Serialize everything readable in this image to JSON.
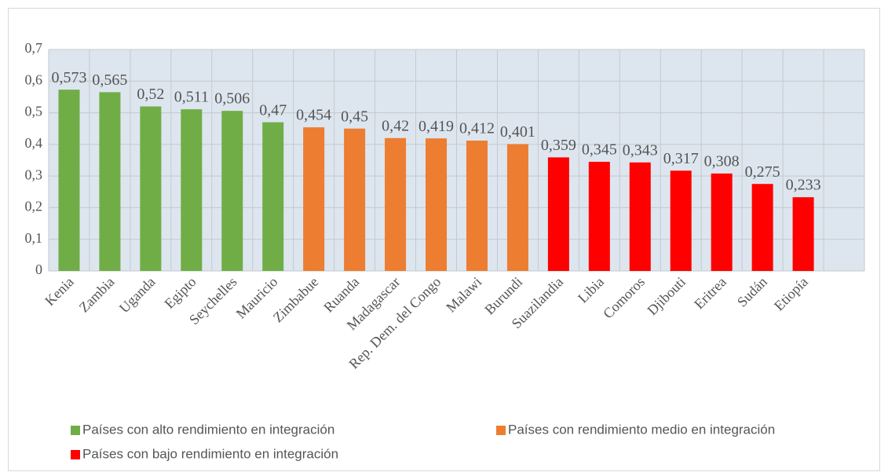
{
  "chart_data": {
    "type": "bar",
    "categories": [
      "Kenia",
      "Zambia",
      "Uganda",
      "Egipto",
      "Seychelles",
      "Mauricio",
      "Zimbabue",
      "Ruanda",
      "Madagascar",
      "Rep. Dem. del Congo",
      "Malawi",
      "Burundi",
      "Suazilandia",
      "Libia",
      "Comoros",
      "Djibouti",
      "Eritrea",
      "Sudán",
      "Etiopía",
      null
    ],
    "series": [
      {
        "name": "Países con alto rendimiento en integración",
        "color": "#70ad47",
        "values": [
          0.573,
          0.565,
          0.52,
          0.511,
          0.506,
          0.47,
          null,
          null,
          null,
          null,
          null,
          null,
          null,
          null,
          null,
          null,
          null,
          null,
          null,
          null
        ],
        "value_labels": [
          "0,573",
          "0,565",
          "0,52",
          "0,511",
          "0,506",
          "0,47",
          null,
          null,
          null,
          null,
          null,
          null,
          null,
          null,
          null,
          null,
          null,
          null,
          null,
          null
        ]
      },
      {
        "name": "Países con rendimiento medio en integración",
        "color": "#ed7d31",
        "values": [
          null,
          null,
          null,
          null,
          null,
          null,
          0.454,
          0.45,
          0.42,
          0.419,
          0.412,
          0.401,
          null,
          null,
          null,
          null,
          null,
          null,
          null,
          null
        ],
        "value_labels": [
          null,
          null,
          null,
          null,
          null,
          null,
          "0,454",
          "0,45",
          "0,42",
          "0,419",
          "0,412",
          "0,401",
          null,
          null,
          null,
          null,
          null,
          null,
          null,
          null
        ]
      },
      {
        "name": "Países con bajo rendimiento en integración",
        "color": "#ff0000",
        "values": [
          null,
          null,
          null,
          null,
          null,
          null,
          null,
          null,
          null,
          null,
          null,
          null,
          0.359,
          0.345,
          0.343,
          0.317,
          0.308,
          0.275,
          0.233,
          null
        ],
        "value_labels": [
          null,
          null,
          null,
          null,
          null,
          null,
          null,
          null,
          null,
          null,
          null,
          null,
          "0,359",
          "0,345",
          "0,343",
          "0,317",
          "0,308",
          "0,275",
          "0,233",
          null
        ]
      }
    ],
    "ylim": [
      0,
      0.7
    ],
    "yticks": [
      0,
      {
        "value": 0.1,
        "label": "0,1"
      },
      {
        "value": 0.2,
        "label": "0,2"
      },
      {
        "value": 0.3,
        "label": "0,3"
      },
      {
        "value": 0.4,
        "label": "0,4"
      },
      {
        "value": 0.5,
        "label": "0,5"
      },
      {
        "value": 0.6,
        "label": "0,6"
      },
      {
        "value": 0.7,
        "label": "0,7"
      }
    ],
    "grid": true,
    "legend": "bottom"
  }
}
